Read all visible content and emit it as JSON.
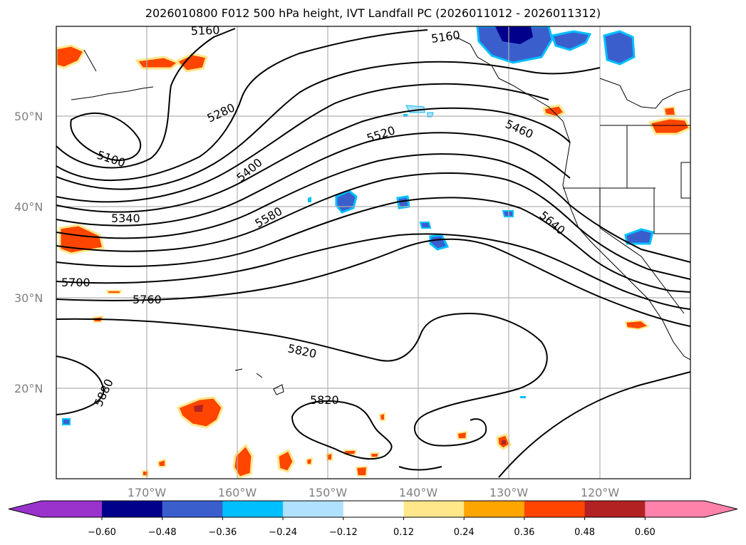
{
  "title": "2026010800 F012 500 hPa height, IVT Landfall PC (2026011012 - 2026011312)",
  "lat_labels": [
    "50°N",
    "40°N",
    "30°N",
    "20°N"
  ],
  "lon_labels": [
    "170°W",
    "160°W",
    "150°W",
    "140°W",
    "130°W",
    "120°W"
  ],
  "contour_labels": [
    "5160",
    "5100",
    "5280",
    "5400",
    "5340",
    "5520",
    "5580",
    "5460",
    "5640",
    "5700",
    "5760",
    "5820",
    "5820",
    "5880",
    "5160"
  ],
  "colorbar": {
    "ticks": [
      "−0.60",
      "−0.48",
      "−0.36",
      "−0.24",
      "−0.12",
      "0.12",
      "0.24",
      "0.36",
      "0.48",
      "0.60"
    ],
    "colors": [
      "#9933cc",
      "#00008b",
      "#3a5fcd",
      "#00bfff",
      "#b0e2ff",
      "#ffffff",
      "#ffe78a",
      "#ffa500",
      "#ff4500",
      "#b22222",
      "#ff82ab"
    ]
  }
}
